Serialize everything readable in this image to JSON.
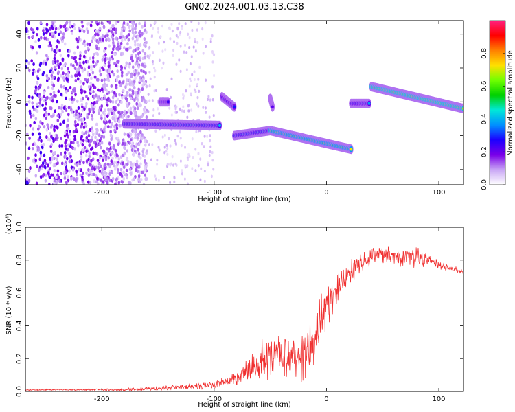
{
  "figure_title": "GN02.2024.001.03.13.C38",
  "chart_data": [
    {
      "type": "heatmap",
      "xlabel": "Height of straight line (km)",
      "ylabel": "Frequency (Hz)",
      "xlim": [
        -268,
        122
      ],
      "ylim": [
        -49,
        48
      ],
      "x_ticks": [
        -200,
        -100,
        0,
        100
      ],
      "y_ticks": [
        -40,
        -20,
        0,
        20,
        40
      ],
      "colorbar": {
        "label": "Normalized spectral amplitude",
        "range": [
          0,
          1
        ],
        "ticks": [
          0.0,
          0.2,
          0.4,
          0.6,
          0.8
        ],
        "colors": [
          "#ffffff",
          "#c9a6f5",
          "#7a00e8",
          "#1c00ff",
          "#0090ff",
          "#00e8d8",
          "#00d000",
          "#70ff00",
          "#ffe000",
          "#ff8000",
          "#ff0000",
          "#ff2080"
        ]
      },
      "segments": [
        {
          "x_start": -180,
          "x_end": -95,
          "freq_start": -13,
          "freq_end": -14,
          "amplitude": 0.45
        },
        {
          "x_start": -148,
          "x_end": -141,
          "freq_start": 0,
          "freq_end": 0,
          "amplitude": 0.3
        },
        {
          "x_start": -93,
          "x_end": -82,
          "freq_start": 3,
          "freq_end": -3,
          "amplitude": 0.35
        },
        {
          "x_start": -82,
          "x_end": -50,
          "freq_start": -20,
          "freq_end": -17,
          "amplitude": 0.45
        },
        {
          "x_start": -50,
          "x_end": -48,
          "freq_start": 2,
          "freq_end": -3,
          "amplitude": 0.25
        },
        {
          "x_start": -50,
          "x_end": 22,
          "freq_start": -17,
          "freq_end": -28,
          "amplitude": 0.75
        },
        {
          "x_start": 22,
          "x_end": 38,
          "freq_start": -1,
          "freq_end": -1,
          "amplitude": 0.4
        },
        {
          "x_start": 40,
          "x_end": 122,
          "freq_start": 9,
          "freq_end": -4,
          "amplitude": 0.85
        }
      ],
      "noise_region": {
        "x_start": -268,
        "x_end": -160,
        "freq_min": -49,
        "freq_max": 48
      }
    },
    {
      "type": "line",
      "xlabel": "Height of straight line (km)",
      "ylabel": "SNR (10 * v/v)",
      "y_multiplier": "(x10⁴)",
      "xlim": [
        -268,
        122
      ],
      "ylim": [
        0,
        1.0
      ],
      "x_ticks": [
        -200,
        -100,
        0,
        100
      ],
      "y_ticks": [
        0.0,
        0.2,
        0.4,
        0.6,
        0.8,
        1.0
      ],
      "color": "#f03030",
      "envelope": {
        "x": [
          -268,
          -220,
          -180,
          -150,
          -120,
          -100,
          -80,
          -70,
          -60,
          -50,
          -40,
          -30,
          -20,
          -10,
          0,
          10,
          20,
          30,
          40,
          50,
          60,
          70,
          80,
          90,
          100,
          110,
          122
        ],
        "mean": [
          0.01,
          0.01,
          0.01,
          0.02,
          0.03,
          0.04,
          0.08,
          0.13,
          0.18,
          0.24,
          0.22,
          0.2,
          0.18,
          0.35,
          0.5,
          0.62,
          0.72,
          0.78,
          0.82,
          0.83,
          0.82,
          0.82,
          0.82,
          0.8,
          0.77,
          0.75,
          0.73
        ],
        "spread": [
          0.005,
          0.005,
          0.01,
          0.015,
          0.02,
          0.025,
          0.05,
          0.08,
          0.12,
          0.18,
          0.14,
          0.15,
          0.18,
          0.2,
          0.15,
          0.1,
          0.08,
          0.07,
          0.07,
          0.08,
          0.07,
          0.07,
          0.07,
          0.05,
          0.03,
          0.02,
          0.02
        ]
      }
    }
  ]
}
